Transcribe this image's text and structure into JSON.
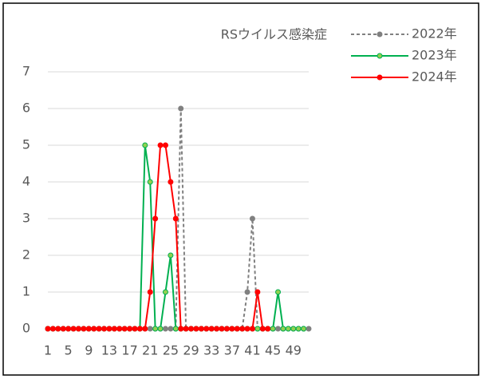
{
  "chart_data": {
    "type": "line",
    "title": "RSウイルス感染症",
    "categories": [
      1,
      null,
      null,
      null,
      5,
      null,
      null,
      null,
      9,
      null,
      null,
      null,
      13,
      null,
      null,
      null,
      17,
      null,
      null,
      null,
      21,
      null,
      null,
      null,
      25,
      null,
      null,
      null,
      29,
      null,
      null,
      null,
      33,
      null,
      null,
      null,
      37,
      null,
      null,
      null,
      41,
      null,
      null,
      null,
      45,
      null,
      null,
      null,
      49,
      null,
      null,
      null
    ],
    "series": [
      {
        "name": "2022年",
        "color": "#808080",
        "marker_color": "#808080",
        "line_style": "dashed",
        "values": [
          0,
          0,
          0,
          0,
          0,
          0,
          0,
          0,
          0,
          0,
          0,
          0,
          0,
          0,
          0,
          0,
          0,
          0,
          0,
          0,
          0,
          0,
          0,
          0,
          0,
          0,
          6,
          0,
          0,
          0,
          0,
          0,
          0,
          0,
          0,
          0,
          0,
          0,
          0,
          1,
          3,
          0,
          0,
          0,
          0,
          0,
          0,
          0,
          0,
          0,
          0,
          0
        ]
      },
      {
        "name": "2023年",
        "color": "#00b050",
        "marker_color": "#92d050",
        "line_style": "solid",
        "values": [
          0,
          0,
          0,
          0,
          0,
          0,
          0,
          0,
          0,
          0,
          0,
          0,
          0,
          0,
          0,
          0,
          0,
          0,
          0,
          5,
          4,
          0,
          0,
          1,
          2,
          0,
          0,
          0,
          0,
          0,
          0,
          0,
          0,
          0,
          0,
          0,
          0,
          0,
          0,
          0,
          0,
          0,
          0,
          0,
          0,
          1,
          0,
          0,
          0,
          0,
          0,
          null
        ]
      },
      {
        "name": "2024年",
        "color": "#ff0000",
        "marker_color": "#ff0000",
        "line_style": "solid",
        "values": [
          0,
          0,
          0,
          0,
          0,
          0,
          0,
          0,
          0,
          0,
          0,
          0,
          0,
          0,
          0,
          0,
          0,
          0,
          0,
          0,
          1,
          3,
          5,
          5,
          4,
          3,
          0,
          0,
          0,
          0,
          0,
          0,
          0,
          0,
          0,
          0,
          0,
          0,
          0,
          0,
          0,
          1,
          0,
          0,
          null,
          null,
          null,
          null,
          null,
          null,
          null,
          null
        ]
      }
    ],
    "ylim": [
      0,
      7
    ],
    "yticks": [
      0,
      1,
      2,
      3,
      4,
      5,
      6,
      7
    ],
    "grid": true,
    "legend": "top-right"
  }
}
